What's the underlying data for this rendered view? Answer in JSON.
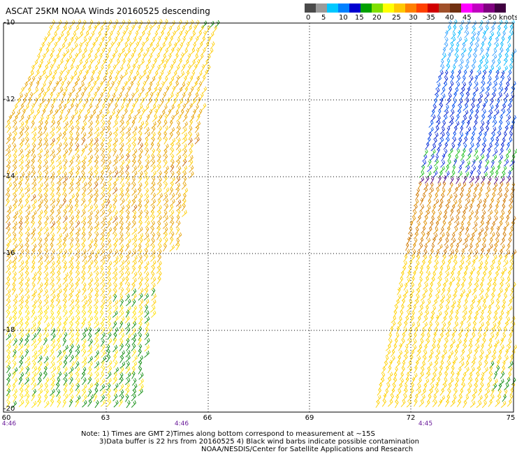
{
  "header": {
    "title": "ASCAT 25KM NOAA Winds 20160525 descending"
  },
  "legend": {
    "colors": [
      "#4a4a4a",
      "#9a9a9a",
      "#00c8ff",
      "#0080ff",
      "#0000d0",
      "#00a000",
      "#80e000",
      "#ffff00",
      "#ffc800",
      "#ff8000",
      "#ff4000",
      "#d00000",
      "#a0502a",
      "#703010",
      "#ff00ff",
      "#c000c0",
      "#800080",
      "#400040"
    ],
    "labels": [
      "0",
      "5",
      "10",
      "15",
      "20",
      "25",
      "30",
      "35",
      "40",
      "45",
      ">50 knots"
    ]
  },
  "axes": {
    "lat_labels": [
      "-10",
      "-12",
      "-14",
      "-16",
      "-18",
      "-20"
    ],
    "lon_labels": [
      "60",
      "63",
      "66",
      "69",
      "72",
      "75"
    ]
  },
  "times": [
    "4:46",
    "4:46",
    "4:45"
  ],
  "notes": [
    "Note: 1) Times are GMT 2)Times along bottom correspond to measurement at ~15S",
    "3)Data buffer is 22 hrs from 20160525 4) Black wind barbs indicate possible contamination",
    "NOAA/NESDIS/Center for Satellite Applications and Research"
  ]
}
